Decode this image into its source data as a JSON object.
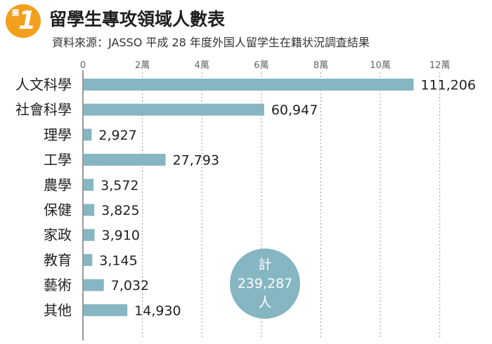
{
  "header": {
    "badge_char": "圖",
    "badge_number": "1",
    "title": "留學生專攻領域人數表",
    "subtitle": "資料來源：JASSO 平成 28 年度外国人留学生在籍状況調査結果"
  },
  "chart_data": {
    "type": "bar",
    "orientation": "horizontal",
    "categories": [
      "人文科學",
      "社會科學",
      "理學",
      "工學",
      "農學",
      "保健",
      "家政",
      "教育",
      "藝術",
      "其他"
    ],
    "values": [
      111206,
      60947,
      2927,
      27793,
      3572,
      3825,
      3910,
      3145,
      7032,
      14930
    ],
    "value_labels": [
      "111,206",
      "60,947",
      "2,927",
      "27,793",
      "3,572",
      "3,825",
      "3,910",
      "3,145",
      "7,032",
      "14,930"
    ],
    "xlim": [
      0,
      130000
    ],
    "xticks": [
      0,
      20000,
      40000,
      60000,
      80000,
      100000,
      120000
    ],
    "xtick_labels": [
      "0",
      "2萬",
      "4萬",
      "6萬",
      "8萬",
      "10萬",
      "12萬"
    ],
    "tick_position": "top",
    "grid": "vertical dotted",
    "bar_color": "#86b6c2",
    "total": {
      "line1": "計",
      "line2": "239,287",
      "line3": "人"
    }
  }
}
